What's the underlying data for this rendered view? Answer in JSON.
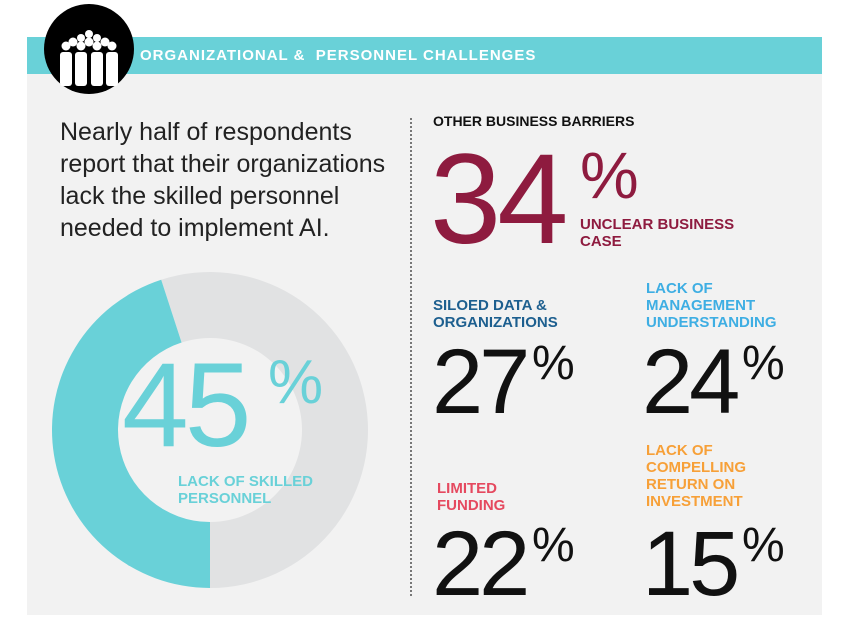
{
  "header": {
    "title": "ORGANIZATIONAL &  PERSONNEL CHALLENGES",
    "icon": "people-group-icon"
  },
  "intro": "Nearly half of respondents report that their organizations lack the skilled personnel needed to implement AI.",
  "colors": {
    "teal": "#69d1d8",
    "ring_bg": "#e1e2e3",
    "maroon": "#8e1b3f",
    "dark_blue": "#1d5f8f",
    "light_blue": "#3eaee3",
    "red": "#e5495f",
    "orange": "#f7a038"
  },
  "chart_data": {
    "type": "pie",
    "variant": "donut",
    "values": [
      45,
      55
    ],
    "highlight": {
      "value": "45",
      "unit": "%",
      "label": "LACK OF SKILLED PERSONNEL"
    }
  },
  "barriers": {
    "heading": "OTHER BUSINESS BARRIERS",
    "items": [
      {
        "value": "34",
        "unit": "%",
        "label": "UNCLEAR BUSINESS CASE"
      },
      {
        "value": "27",
        "unit": "%",
        "label": "SILOED DATA & ORGANIZATIONS"
      },
      {
        "value": "24",
        "unit": "%",
        "label": "LACK OF MANAGEMENT UNDERSTANDING"
      },
      {
        "value": "22",
        "unit": "%",
        "label": "LIMITED FUNDING"
      },
      {
        "value": "15",
        "unit": "%",
        "label": "LACK OF COMPELLING RETURN ON INVESTMENT"
      }
    ]
  }
}
